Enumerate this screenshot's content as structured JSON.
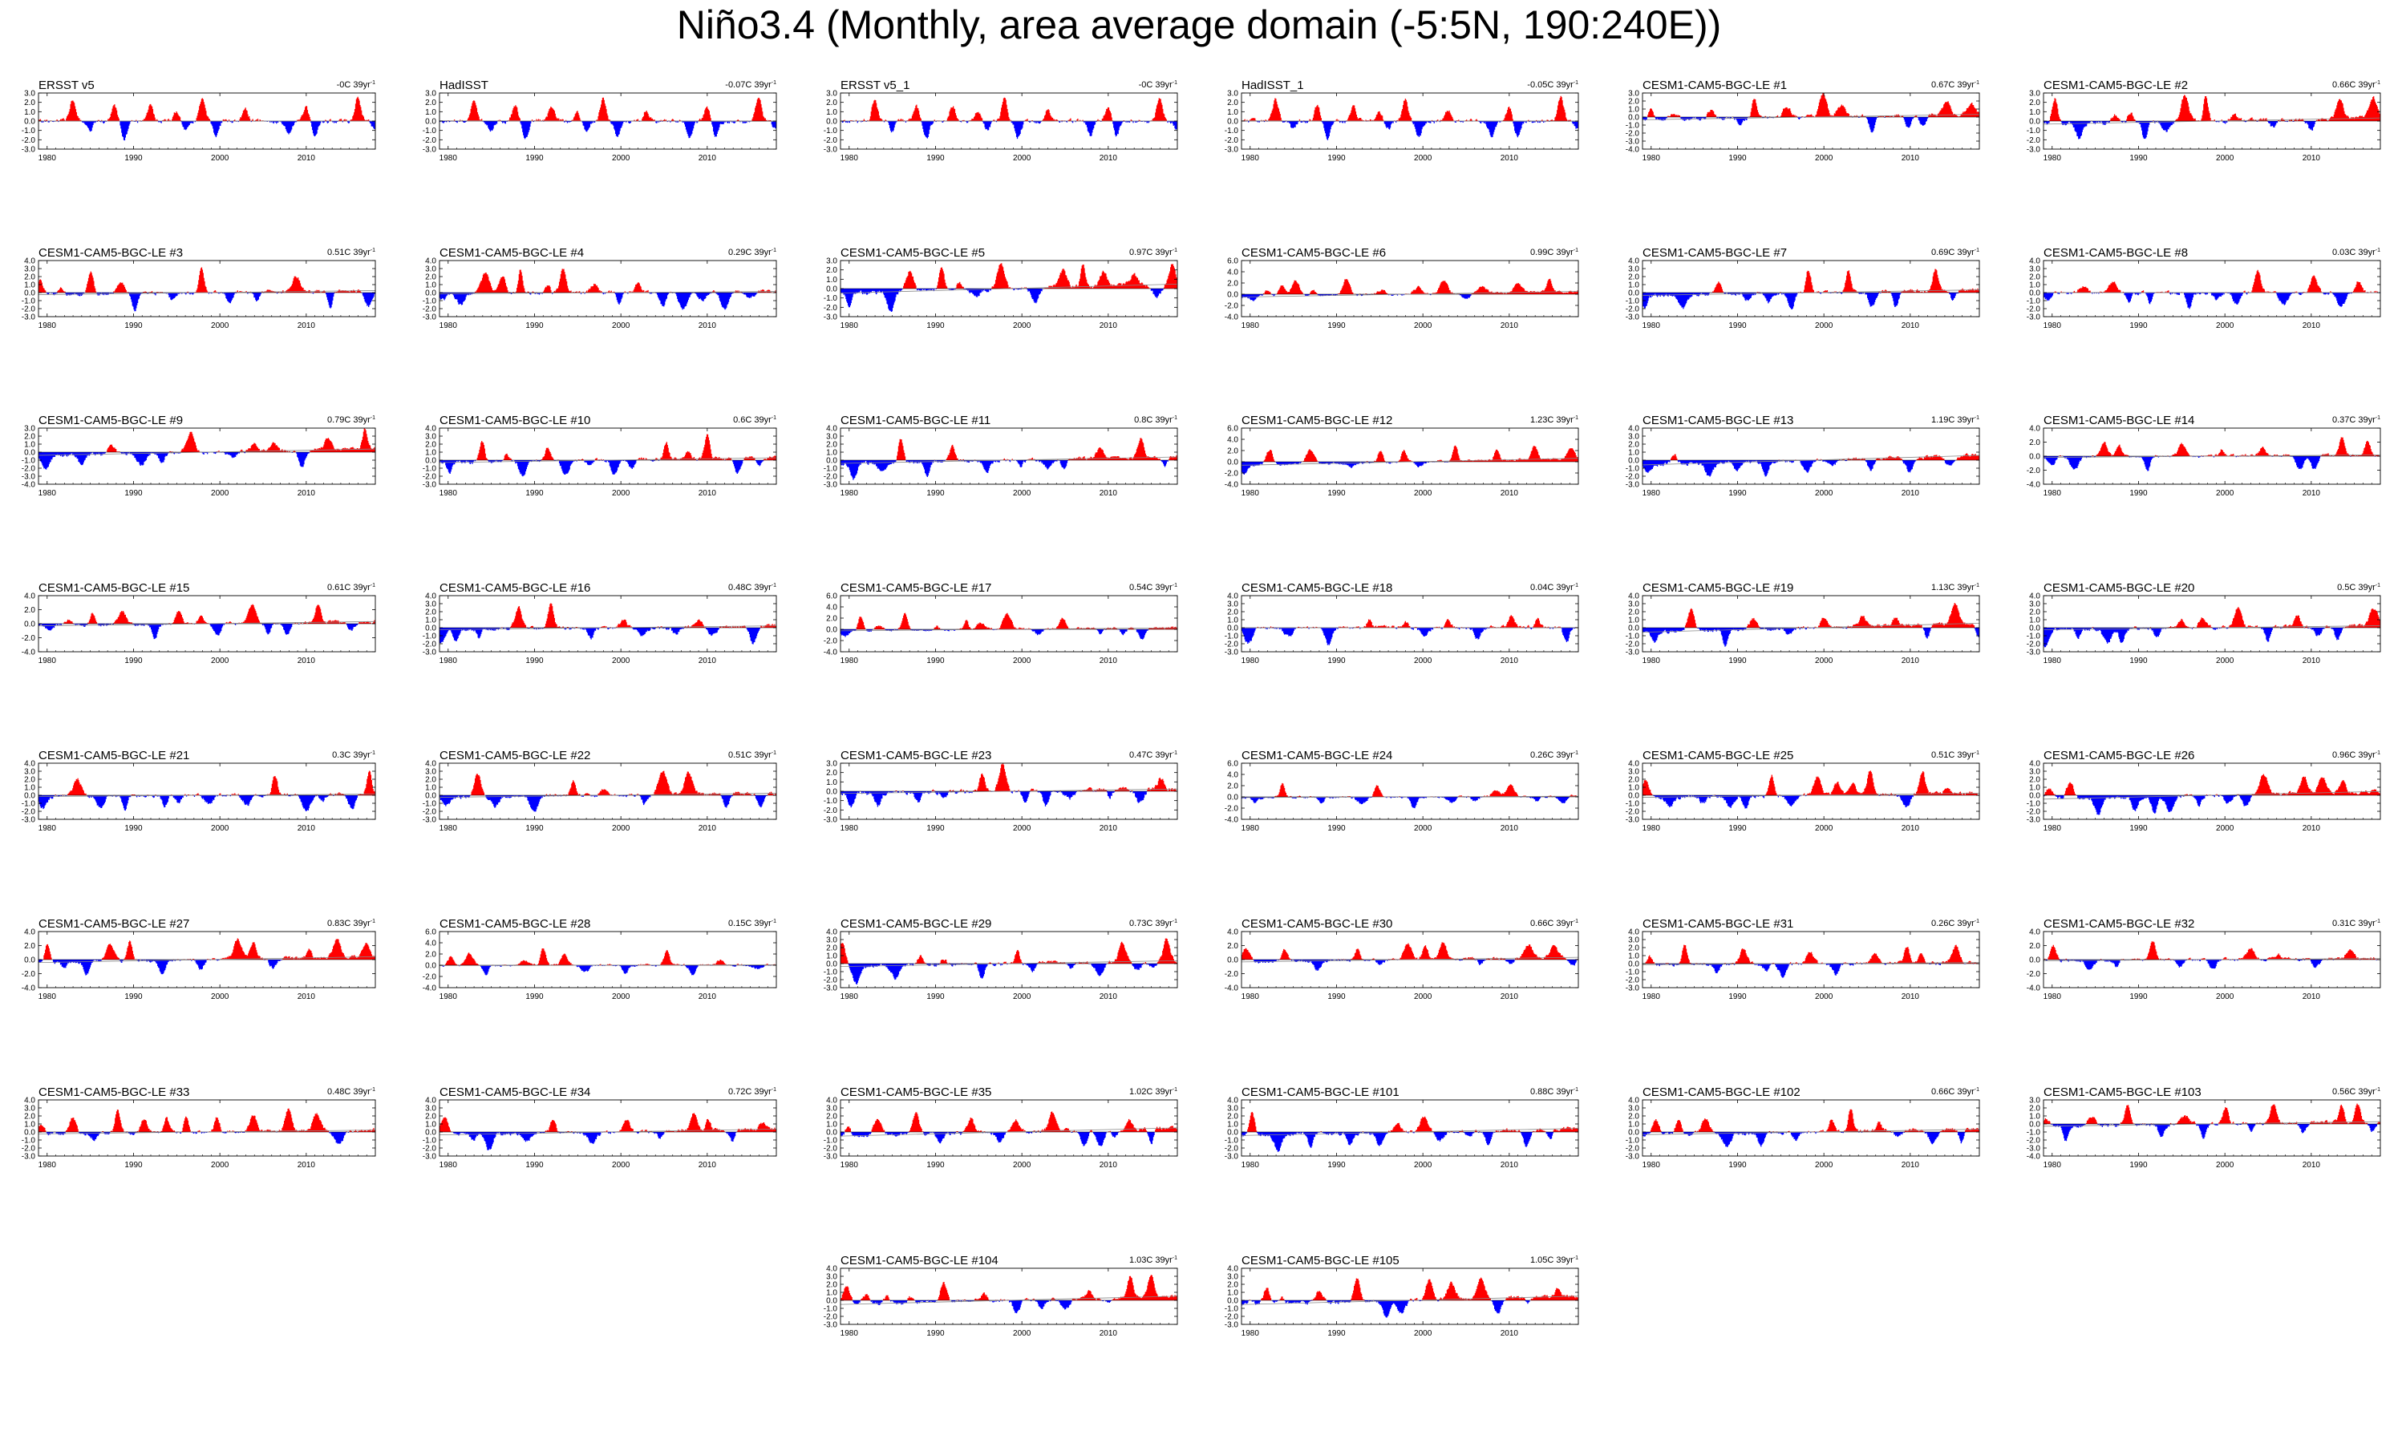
{
  "figure": {
    "title": "Niño3.4 (Monthly, area average domain (-5:5N, 190:240E))",
    "positive_color": "#ff0000",
    "negative_color": "#0000ff",
    "trend_units_suffix": "39yr",
    "trend_units_exponent": "-1"
  },
  "chart_data": {
    "type": "area",
    "variable": "Niño3.4 SST anomaly (monthly)",
    "x_range": [
      1979,
      2018
    ],
    "x_ticks": [
      1980,
      1990,
      2000,
      2010
    ],
    "fill_above_zero": "red",
    "fill_below_zero": "blue",
    "enso_events": [
      {
        "year": 1982.9,
        "amp": 2.2
      },
      {
        "year": 1987.7,
        "amp": 1.6
      },
      {
        "year": 1991.9,
        "amp": 1.6
      },
      {
        "year": 1994.9,
        "amp": 1.0
      },
      {
        "year": 1997.9,
        "amp": 2.4
      },
      {
        "year": 2002.9,
        "amp": 1.2
      },
      {
        "year": 2009.9,
        "amp": 1.5
      },
      {
        "year": 2015.9,
        "amp": 2.6
      },
      {
        "year": 1988.9,
        "amp": -1.9
      },
      {
        "year": 1999.5,
        "amp": -1.7
      },
      {
        "year": 2007.9,
        "amp": -1.6
      },
      {
        "year": 2010.9,
        "amp": -1.6
      },
      {
        "year": 1984.9,
        "amp": -1.0
      },
      {
        "year": 1995.9,
        "amp": -0.9
      },
      {
        "year": 2017.9,
        "amp": -0.9
      }
    ],
    "panels": [
      {
        "title": "ERSST v5",
        "trend": "-0C",
        "ytick_labels": [
          "-3.0",
          "-2.0",
          "-1.0",
          "0.0",
          "1.0",
          "2.0",
          "3.0"
        ],
        "ylim": [
          -3,
          3
        ],
        "trend_value": 0.0,
        "seed": 11,
        "observed": true
      },
      {
        "title": "HadISST",
        "trend": "-0.07C",
        "ytick_labels": [
          "-3.0",
          "-2.0",
          "-1.0",
          "0.0",
          "1.0",
          "2.0",
          "3.0"
        ],
        "ylim": [
          -3,
          3
        ],
        "trend_value": -0.07,
        "seed": 12,
        "observed": true
      },
      {
        "title": "ERSST v5_1",
        "trend": "-0C",
        "ytick_labels": [
          "-3.0",
          "-2.0",
          "-1.0",
          "0.0",
          "1.0",
          "2.0",
          "3.0"
        ],
        "ylim": [
          -3,
          3
        ],
        "trend_value": 0.0,
        "seed": 13,
        "observed": true
      },
      {
        "title": "HadISST_1",
        "trend": "-0.05C",
        "ytick_labels": [
          "-3.0",
          "-2.0",
          "-1.0",
          "0.0",
          "1.0",
          "2.0",
          "3.0"
        ],
        "ylim": [
          -3,
          3
        ],
        "trend_value": -0.05,
        "seed": 14,
        "observed": true
      },
      {
        "title": "CESM1-CAM5-BGC-LE #1",
        "trend": "0.67C",
        "ytick_labels": [
          "-4.0",
          "-3.0",
          "-2.0",
          "-1.0",
          "0.0",
          "1.0",
          "2.0",
          "3.0"
        ],
        "ylim": [
          -4,
          3
        ],
        "trend_value": 0.67,
        "seed": 101
      },
      {
        "title": "CESM1-CAM5-BGC-LE #2",
        "trend": "0.66C",
        "ytick_labels": [
          "-3.0",
          "-2.0",
          "-1.0",
          "0.0",
          "1.0",
          "2.0",
          "3.0"
        ],
        "ylim": [
          -3,
          3
        ],
        "trend_value": 0.66,
        "seed": 102
      },
      {
        "title": "CESM1-CAM5-BGC-LE #3",
        "trend": "0.51C",
        "ytick_labels": [
          "-3.0",
          "-2.0",
          "-1.0",
          "0.0",
          "1.0",
          "2.0",
          "3.0",
          "4.0"
        ],
        "ylim": [
          -3,
          4
        ],
        "trend_value": 0.51,
        "seed": 103
      },
      {
        "title": "CESM1-CAM5-BGC-LE #4",
        "trend": "0.29C",
        "ytick_labels": [
          "-3.0",
          "-2.0",
          "-1.0",
          "0.0",
          "1.0",
          "2.0",
          "3.0",
          "4.0"
        ],
        "ylim": [
          -3,
          4
        ],
        "trend_value": 0.29,
        "seed": 104
      },
      {
        "title": "CESM1-CAM5-BGC-LE #5",
        "trend": "0.97C",
        "ytick_labels": [
          "-3.0",
          "-2.0",
          "-1.0",
          "0.0",
          "1.0",
          "2.0",
          "3.0"
        ],
        "ylim": [
          -3,
          3
        ],
        "trend_value": 0.97,
        "seed": 105
      },
      {
        "title": "CESM1-CAM5-BGC-LE #6",
        "trend": "0.99C",
        "ytick_labels": [
          "-4.0",
          "-2.0",
          "0.0",
          "2.0",
          "4.0",
          "6.0"
        ],
        "ylim": [
          -4,
          6
        ],
        "trend_value": 0.99,
        "seed": 106
      },
      {
        "title": "CESM1-CAM5-BGC-LE #7",
        "trend": "0.69C",
        "ytick_labels": [
          "-3.0",
          "-2.0",
          "-1.0",
          "0.0",
          "1.0",
          "2.0",
          "3.0",
          "4.0"
        ],
        "ylim": [
          -3,
          4
        ],
        "trend_value": 0.69,
        "seed": 107
      },
      {
        "title": "CESM1-CAM5-BGC-LE #8",
        "trend": "0.03C",
        "ytick_labels": [
          "-3.0",
          "-2.0",
          "-1.0",
          "0.0",
          "1.0",
          "2.0",
          "3.0",
          "4.0"
        ],
        "ylim": [
          -3,
          4
        ],
        "trend_value": 0.03,
        "seed": 108
      },
      {
        "title": "CESM1-CAM5-BGC-LE #9",
        "trend": "0.79C",
        "ytick_labels": [
          "-4.0",
          "-3.0",
          "-2.0",
          "-1.0",
          "0.0",
          "1.0",
          "2.0",
          "3.0"
        ],
        "ylim": [
          -4,
          3
        ],
        "trend_value": 0.79,
        "seed": 109
      },
      {
        "title": "CESM1-CAM5-BGC-LE #10",
        "trend": "0.6C",
        "ytick_labels": [
          "-3.0",
          "-2.0",
          "-1.0",
          "0.0",
          "1.0",
          "2.0",
          "3.0",
          "4.0"
        ],
        "ylim": [
          -3,
          4
        ],
        "trend_value": 0.6,
        "seed": 110
      },
      {
        "title": "CESM1-CAM5-BGC-LE #11",
        "trend": "0.8C",
        "ytick_labels": [
          "-3.0",
          "-2.0",
          "-1.0",
          "0.0",
          "1.0",
          "2.0",
          "3.0",
          "4.0"
        ],
        "ylim": [
          -3,
          4
        ],
        "trend_value": 0.8,
        "seed": 111
      },
      {
        "title": "CESM1-CAM5-BGC-LE #12",
        "trend": "1.23C",
        "ytick_labels": [
          "-4.0",
          "-2.0",
          "0.0",
          "2.0",
          "4.0",
          "6.0"
        ],
        "ylim": [
          -4,
          6
        ],
        "trend_value": 1.23,
        "seed": 112
      },
      {
        "title": "CESM1-CAM5-BGC-LE #13",
        "trend": "1.19C",
        "ytick_labels": [
          "-3.0",
          "-2.0",
          "-1.0",
          "0.0",
          "1.0",
          "2.0",
          "3.0",
          "4.0"
        ],
        "ylim": [
          -3,
          4
        ],
        "trend_value": 1.19,
        "seed": 113
      },
      {
        "title": "CESM1-CAM5-BGC-LE #14",
        "trend": "0.37C",
        "ytick_labels": [
          "-4.0",
          "-2.0",
          "0.0",
          "2.0",
          "4.0"
        ],
        "ylim": [
          -4,
          4
        ],
        "trend_value": 0.37,
        "seed": 114
      },
      {
        "title": "CESM1-CAM5-BGC-LE #15",
        "trend": "0.61C",
        "ytick_labels": [
          "-4.0",
          "-2.0",
          "0.0",
          "2.0",
          "4.0"
        ],
        "ylim": [
          -4,
          4
        ],
        "trend_value": 0.61,
        "seed": 115
      },
      {
        "title": "CESM1-CAM5-BGC-LE #16",
        "trend": "0.48C",
        "ytick_labels": [
          "-3.0",
          "-2.0",
          "-1.0",
          "0.0",
          "1.0",
          "2.0",
          "3.0",
          "4.0"
        ],
        "ylim": [
          -3,
          4
        ],
        "trend_value": 0.48,
        "seed": 116
      },
      {
        "title": "CESM1-CAM5-BGC-LE #17",
        "trend": "0.54C",
        "ytick_labels": [
          "-4.0",
          "-2.0",
          "0.0",
          "2.0",
          "4.0",
          "6.0"
        ],
        "ylim": [
          -4,
          6
        ],
        "trend_value": 0.54,
        "seed": 117
      },
      {
        "title": "CESM1-CAM5-BGC-LE #18",
        "trend": "0.04C",
        "ytick_labels": [
          "-3.0",
          "-2.0",
          "-1.0",
          "0.0",
          "1.0",
          "2.0",
          "3.0",
          "4.0"
        ],
        "ylim": [
          -3,
          4
        ],
        "trend_value": 0.04,
        "seed": 118
      },
      {
        "title": "CESM1-CAM5-BGC-LE #19",
        "trend": "1.13C",
        "ytick_labels": [
          "-3.0",
          "-2.0",
          "-1.0",
          "0.0",
          "1.0",
          "2.0",
          "3.0",
          "4.0"
        ],
        "ylim": [
          -3,
          4
        ],
        "trend_value": 1.13,
        "seed": 119
      },
      {
        "title": "CESM1-CAM5-BGC-LE #20",
        "trend": "0.5C",
        "ytick_labels": [
          "-3.0",
          "-2.0",
          "-1.0",
          "0.0",
          "1.0",
          "2.0",
          "3.0",
          "4.0"
        ],
        "ylim": [
          -3,
          4
        ],
        "trend_value": 0.5,
        "seed": 120
      },
      {
        "title": "CESM1-CAM5-BGC-LE #21",
        "trend": "0.3C",
        "ytick_labels": [
          "-3.0",
          "-2.0",
          "-1.0",
          "0.0",
          "1.0",
          "2.0",
          "3.0",
          "4.0"
        ],
        "ylim": [
          -3,
          4
        ],
        "trend_value": 0.3,
        "seed": 121
      },
      {
        "title": "CESM1-CAM5-BGC-LE #22",
        "trend": "0.51C",
        "ytick_labels": [
          "-3.0",
          "-2.0",
          "-1.0",
          "0.0",
          "1.0",
          "2.0",
          "3.0",
          "4.0"
        ],
        "ylim": [
          -3,
          4
        ],
        "trend_value": 0.51,
        "seed": 122
      },
      {
        "title": "CESM1-CAM5-BGC-LE #23",
        "trend": "0.47C",
        "ytick_labels": [
          "-3.0",
          "-2.0",
          "-1.0",
          "0.0",
          "1.0",
          "2.0",
          "3.0"
        ],
        "ylim": [
          -3,
          3
        ],
        "trend_value": 0.47,
        "seed": 123
      },
      {
        "title": "CESM1-CAM5-BGC-LE #24",
        "trend": "0.26C",
        "ytick_labels": [
          "-4.0",
          "-2.0",
          "0.0",
          "2.0",
          "4.0",
          "6.0"
        ],
        "ylim": [
          -4,
          6
        ],
        "trend_value": 0.26,
        "seed": 124
      },
      {
        "title": "CESM1-CAM5-BGC-LE #25",
        "trend": "0.51C",
        "ytick_labels": [
          "-3.0",
          "-2.0",
          "-1.0",
          "0.0",
          "1.0",
          "2.0",
          "3.0",
          "4.0"
        ],
        "ylim": [
          -3,
          4
        ],
        "trend_value": 0.51,
        "seed": 125
      },
      {
        "title": "CESM1-CAM5-BGC-LE #26",
        "trend": "0.96C",
        "ytick_labels": [
          "-3.0",
          "-2.0",
          "-1.0",
          "0.0",
          "1.0",
          "2.0",
          "3.0",
          "4.0"
        ],
        "ylim": [
          -3,
          4
        ],
        "trend_value": 0.96,
        "seed": 126
      },
      {
        "title": "CESM1-CAM5-BGC-LE #27",
        "trend": "0.83C",
        "ytick_labels": [
          "-4.0",
          "-2.0",
          "0.0",
          "2.0",
          "4.0"
        ],
        "ylim": [
          -4,
          4
        ],
        "trend_value": 0.83,
        "seed": 127
      },
      {
        "title": "CESM1-CAM5-BGC-LE #28",
        "trend": "0.15C",
        "ytick_labels": [
          "-4.0",
          "-2.0",
          "0.0",
          "2.0",
          "4.0",
          "6.0"
        ],
        "ylim": [
          -4,
          6
        ],
        "trend_value": 0.15,
        "seed": 128
      },
      {
        "title": "CESM1-CAM5-BGC-LE #29",
        "trend": "0.73C",
        "ytick_labels": [
          "-3.0",
          "-2.0",
          "-1.0",
          "0.0",
          "1.0",
          "2.0",
          "3.0",
          "4.0"
        ],
        "ylim": [
          -3,
          4
        ],
        "trend_value": 0.73,
        "seed": 129
      },
      {
        "title": "CESM1-CAM5-BGC-LE #30",
        "trend": "0.66C",
        "ytick_labels": [
          "-4.0",
          "-2.0",
          "0.0",
          "2.0",
          "4.0"
        ],
        "ylim": [
          -4,
          4
        ],
        "trend_value": 0.66,
        "seed": 130
      },
      {
        "title": "CESM1-CAM5-BGC-LE #31",
        "trend": "0.26C",
        "ytick_labels": [
          "-3.0",
          "-2.0",
          "-1.0",
          "0.0",
          "1.0",
          "2.0",
          "3.0",
          "4.0"
        ],
        "ylim": [
          -3,
          4
        ],
        "trend_value": 0.26,
        "seed": 131
      },
      {
        "title": "CESM1-CAM5-BGC-LE #32",
        "trend": "0.31C",
        "ytick_labels": [
          "-4.0",
          "-2.0",
          "0.0",
          "2.0",
          "4.0"
        ],
        "ylim": [
          -4,
          4
        ],
        "trend_value": 0.31,
        "seed": 132
      },
      {
        "title": "CESM1-CAM5-BGC-LE #33",
        "trend": "0.48C",
        "ytick_labels": [
          "-3.0",
          "-2.0",
          "-1.0",
          "0.0",
          "1.0",
          "2.0",
          "3.0",
          "4.0"
        ],
        "ylim": [
          -3,
          4
        ],
        "trend_value": 0.48,
        "seed": 133
      },
      {
        "title": "CESM1-CAM5-BGC-LE #34",
        "trend": "0.72C",
        "ytick_labels": [
          "-3.0",
          "-2.0",
          "-1.0",
          "0.0",
          "1.0",
          "2.0",
          "3.0",
          "4.0"
        ],
        "ylim": [
          -3,
          4
        ],
        "trend_value": 0.72,
        "seed": 134
      },
      {
        "title": "CESM1-CAM5-BGC-LE #35",
        "trend": "1.02C",
        "ytick_labels": [
          "-3.0",
          "-2.0",
          "-1.0",
          "0.0",
          "1.0",
          "2.0",
          "3.0",
          "4.0"
        ],
        "ylim": [
          -3,
          4
        ],
        "trend_value": 1.02,
        "seed": 135
      },
      {
        "title": "CESM1-CAM5-BGC-LE #101",
        "trend": "0.88C",
        "ytick_labels": [
          "-3.0",
          "-2.0",
          "-1.0",
          "0.0",
          "1.0",
          "2.0",
          "3.0",
          "4.0"
        ],
        "ylim": [
          -3,
          4
        ],
        "trend_value": 0.88,
        "seed": 136
      },
      {
        "title": "CESM1-CAM5-BGC-LE #102",
        "trend": "0.66C",
        "ytick_labels": [
          "-3.0",
          "-2.0",
          "-1.0",
          "0.0",
          "1.0",
          "2.0",
          "3.0",
          "4.0"
        ],
        "ylim": [
          -3,
          4
        ],
        "trend_value": 0.66,
        "seed": 137
      },
      {
        "title": "CESM1-CAM5-BGC-LE #103",
        "trend": "0.56C",
        "ytick_labels": [
          "-4.0",
          "-3.0",
          "-2.0",
          "-1.0",
          "0.0",
          "1.0",
          "2.0",
          "3.0"
        ],
        "ylim": [
          -4,
          3
        ],
        "trend_value": 0.56,
        "seed": 138
      },
      {
        "title": "CESM1-CAM5-BGC-LE #104",
        "trend": "1.03C",
        "ytick_labels": [
          "-3.0",
          "-2.0",
          "-1.0",
          "0.0",
          "1.0",
          "2.0",
          "3.0",
          "4.0"
        ],
        "ylim": [
          -3,
          4
        ],
        "trend_value": 1.03,
        "seed": 139
      },
      {
        "title": "CESM1-CAM5-BGC-LE #105",
        "trend": "1.05C",
        "ytick_labels": [
          "-3.0",
          "-2.0",
          "-1.0",
          "0.0",
          "1.0",
          "2.0",
          "3.0",
          "4.0"
        ],
        "ylim": [
          -3,
          4
        ],
        "trend_value": 1.05,
        "seed": 140
      }
    ]
  }
}
